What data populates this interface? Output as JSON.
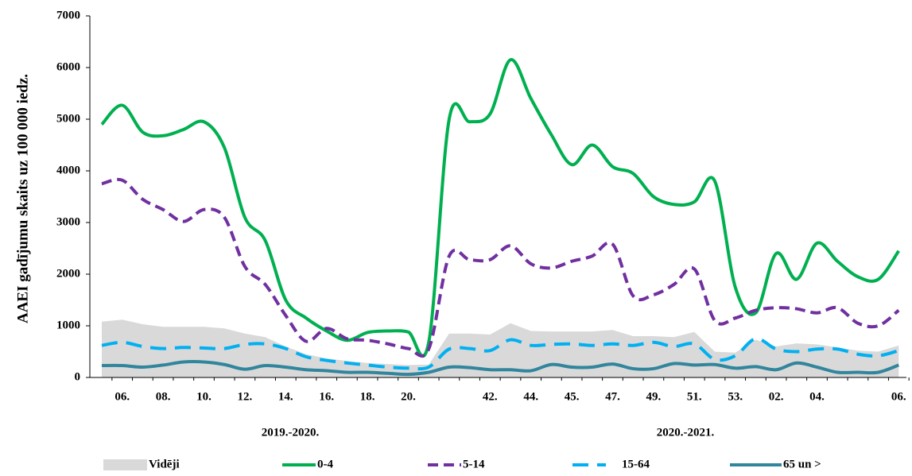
{
  "chart_data": {
    "type": "line",
    "y_label": "AAEI gadījumu skaits uz 100 000 iedz.",
    "categories": [
      null,
      "06.",
      null,
      "08.",
      null,
      "10.",
      null,
      "12.",
      null,
      "14.",
      null,
      "16.",
      null,
      "18.",
      null,
      "20.",
      null,
      null,
      null,
      "42.",
      null,
      "44.",
      null,
      "45.",
      null,
      "47.",
      null,
      "49.",
      null,
      "51.",
      null,
      "53.",
      null,
      "02.",
      null,
      "04.",
      null,
      null,
      null,
      "06."
    ],
    "category_groups": [
      "2019.-2020.",
      "2020.-2021."
    ],
    "ylim": [
      0,
      7000
    ],
    "yticks": [
      0,
      1000,
      2000,
      3000,
      4000,
      5000,
      6000,
      7000
    ],
    "legend": "bottom",
    "series": [
      {
        "name": "Vidēji",
        "style": "area",
        "color": "#d9d9d9",
        "values": [
          1080,
          1120,
          1030,
          980,
          980,
          980,
          950,
          850,
          780,
          600,
          450,
          370,
          320,
          280,
          260,
          240,
          250,
          850,
          850,
          830,
          1050,
          900,
          890,
          890,
          890,
          920,
          800,
          800,
          780,
          880,
          500,
          480,
          730,
          600,
          660,
          640,
          580,
          520,
          500,
          620
        ]
      },
      {
        "name": "0-4",
        "style": "solid",
        "color": "#00b050",
        "values": [
          4900,
          5270,
          4750,
          4680,
          4800,
          4950,
          4450,
          3100,
          2650,
          1500,
          1150,
          900,
          720,
          870,
          900,
          880,
          680,
          5000,
          4950,
          5100,
          6150,
          5400,
          4700,
          4120,
          4500,
          4080,
          3950,
          3500,
          3350,
          3400,
          3800,
          1750,
          1250,
          2400,
          1900,
          2600,
          2250,
          1950,
          1900,
          2450
        ]
      },
      {
        "name": "5-14",
        "style": "dash",
        "color": "#7030a0",
        "values": [
          3750,
          3820,
          3450,
          3250,
          3020,
          3250,
          3100,
          2150,
          1800,
          1200,
          700,
          950,
          750,
          720,
          650,
          560,
          550,
          2350,
          2280,
          2280,
          2550,
          2200,
          2120,
          2250,
          2350,
          2580,
          1580,
          1600,
          1800,
          2100,
          1100,
          1150,
          1300,
          1350,
          1330,
          1250,
          1350,
          1050,
          1000,
          1300
        ]
      },
      {
        "name": "15-64",
        "style": "longdash",
        "color": "#00b0f0",
        "values": [
          620,
          680,
          600,
          560,
          580,
          570,
          560,
          640,
          650,
          560,
          400,
          330,
          280,
          240,
          200,
          180,
          200,
          550,
          560,
          520,
          730,
          620,
          640,
          650,
          620,
          650,
          620,
          680,
          600,
          650,
          350,
          420,
          750,
          550,
          500,
          550,
          550,
          450,
          420,
          520
        ]
      },
      {
        "name": "65 un >",
        "style": "solid",
        "color": "#31859c",
        "values": [
          230,
          230,
          200,
          240,
          300,
          300,
          250,
          160,
          230,
          200,
          150,
          130,
          100,
          100,
          80,
          60,
          100,
          200,
          190,
          150,
          150,
          130,
          250,
          200,
          200,
          260,
          170,
          170,
          270,
          240,
          250,
          180,
          210,
          150,
          280,
          200,
          100,
          100,
          100,
          240
        ]
      }
    ]
  }
}
